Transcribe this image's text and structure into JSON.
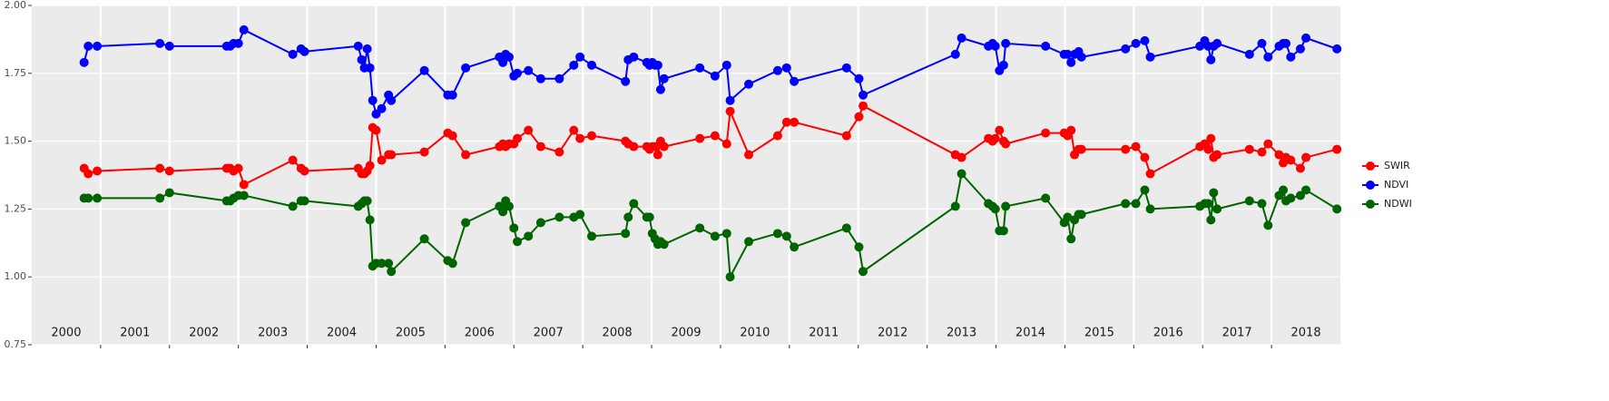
{
  "chart_data": {
    "type": "line",
    "x": [
      2000.76,
      2000.82,
      2000.95,
      2001.86,
      2002.0,
      2002.83,
      2002.88,
      2002.93,
      2003.0,
      2003.08,
      2003.79,
      2003.91,
      2003.96,
      2004.74,
      2004.79,
      2004.83,
      2004.87,
      2004.91,
      2004.95,
      2005.0,
      2005.08,
      2005.18,
      2005.22,
      2005.7,
      2006.04,
      2006.11,
      2006.3,
      2006.79,
      2006.84,
      2006.88,
      2006.93,
      2007.0,
      2007.05,
      2007.21,
      2007.39,
      2007.66,
      2007.87,
      2007.96,
      2008.13,
      2008.62,
      2008.66,
      2008.74,
      2008.93,
      2008.97,
      2009.01,
      2009.05,
      2009.09,
      2009.13,
      2009.18,
      2009.7,
      2009.92,
      2010.09,
      2010.14,
      2010.41,
      2010.83,
      2010.96,
      2011.07,
      2011.83,
      2012.01,
      2012.07,
      2013.41,
      2013.5,
      2013.89,
      2013.95,
      2013.99,
      2014.05,
      2014.11,
      2014.14,
      2014.72,
      2014.99,
      2015.04,
      2015.09,
      2015.14,
      2015.2,
      2015.24,
      2015.88,
      2016.03,
      2016.16,
      2016.24,
      2016.96,
      2017.03,
      2017.08,
      2017.12,
      2017.16,
      2017.21,
      2017.68,
      2017.86,
      2017.95,
      2018.11,
      2018.17,
      2018.21,
      2018.28,
      2018.42,
      2018.5,
      2018.95
    ],
    "series": [
      {
        "name": "SWIR",
        "color": "#ff0000",
        "values": [
          1.4,
          1.38,
          1.39,
          1.4,
          1.39,
          1.4,
          1.4,
          1.39,
          1.4,
          1.34,
          1.43,
          1.4,
          1.39,
          1.4,
          1.38,
          1.38,
          1.39,
          1.41,
          1.55,
          1.54,
          1.43,
          1.45,
          1.45,
          1.46,
          1.53,
          1.52,
          1.45,
          1.48,
          1.49,
          1.48,
          1.49,
          1.49,
          1.51,
          1.54,
          1.48,
          1.46,
          1.54,
          1.51,
          1.52,
          1.5,
          1.49,
          1.48,
          1.48,
          1.47,
          1.48,
          1.48,
          1.45,
          1.5,
          1.48,
          1.51,
          1.52,
          1.49,
          1.61,
          1.45,
          1.52,
          1.57,
          1.57,
          1.52,
          1.59,
          1.63,
          1.45,
          1.44,
          1.51,
          1.5,
          1.51,
          1.54,
          1.5,
          1.49,
          1.53,
          1.53,
          1.52,
          1.54,
          1.45,
          1.47,
          1.47,
          1.47,
          1.48,
          1.44,
          1.38,
          1.48,
          1.49,
          1.47,
          1.51,
          1.44,
          1.45,
          1.47,
          1.46,
          1.49,
          1.45,
          1.42,
          1.44,
          1.43,
          1.4,
          1.44,
          1.47
        ]
      },
      {
        "name": "NDVI",
        "color": "#0000ff",
        "values": [
          1.79,
          1.85,
          1.85,
          1.86,
          1.85,
          1.85,
          1.85,
          1.86,
          1.86,
          1.91,
          1.82,
          1.84,
          1.83,
          1.85,
          1.8,
          1.77,
          1.84,
          1.77,
          1.65,
          1.6,
          1.62,
          1.67,
          1.65,
          1.76,
          1.67,
          1.67,
          1.77,
          1.81,
          1.79,
          1.82,
          1.81,
          1.74,
          1.75,
          1.76,
          1.73,
          1.73,
          1.78,
          1.81,
          1.78,
          1.72,
          1.8,
          1.81,
          1.79,
          1.78,
          1.79,
          1.78,
          1.78,
          1.69,
          1.73,
          1.77,
          1.74,
          1.78,
          1.65,
          1.71,
          1.76,
          1.77,
          1.72,
          1.77,
          1.73,
          1.67,
          1.82,
          1.88,
          1.85,
          1.86,
          1.85,
          1.76,
          1.78,
          1.86,
          1.85,
          1.82,
          1.82,
          1.79,
          1.82,
          1.83,
          1.81,
          1.84,
          1.86,
          1.87,
          1.81,
          1.85,
          1.87,
          1.85,
          1.8,
          1.85,
          1.86,
          1.82,
          1.86,
          1.81,
          1.85,
          1.86,
          1.86,
          1.81,
          1.84,
          1.88,
          1.84
        ]
      },
      {
        "name": "NDWI",
        "color": "#006400",
        "values": [
          1.29,
          1.29,
          1.29,
          1.29,
          1.31,
          1.28,
          1.28,
          1.29,
          1.3,
          1.3,
          1.26,
          1.28,
          1.28,
          1.26,
          1.27,
          1.28,
          1.28,
          1.21,
          1.04,
          1.05,
          1.05,
          1.05,
          1.02,
          1.14,
          1.06,
          1.05,
          1.2,
          1.26,
          1.24,
          1.28,
          1.26,
          1.18,
          1.13,
          1.15,
          1.2,
          1.22,
          1.22,
          1.23,
          1.15,
          1.16,
          1.22,
          1.27,
          1.22,
          1.22,
          1.16,
          1.14,
          1.12,
          1.13,
          1.12,
          1.18,
          1.15,
          1.16,
          1.0,
          1.13,
          1.16,
          1.15,
          1.11,
          1.18,
          1.11,
          1.02,
          1.26,
          1.38,
          1.27,
          1.26,
          1.25,
          1.17,
          1.17,
          1.26,
          1.29,
          1.2,
          1.22,
          1.14,
          1.21,
          1.23,
          1.23,
          1.27,
          1.27,
          1.32,
          1.25,
          1.26,
          1.27,
          1.27,
          1.21,
          1.31,
          1.25,
          1.28,
          1.27,
          1.19,
          1.3,
          1.32,
          1.28,
          1.29,
          1.3,
          1.32,
          1.25
        ]
      }
    ],
    "xlim": [
      2000,
      2019
    ],
    "xticks": [
      {
        "value": 2000.5,
        "label": "2000"
      },
      {
        "value": 2001.5,
        "label": "2001"
      },
      {
        "value": 2002.5,
        "label": "2002"
      },
      {
        "value": 2003.5,
        "label": "2003"
      },
      {
        "value": 2004.5,
        "label": "2004"
      },
      {
        "value": 2005.5,
        "label": "2005"
      },
      {
        "value": 2006.5,
        "label": "2006"
      },
      {
        "value": 2007.5,
        "label": "2007"
      },
      {
        "value": 2008.5,
        "label": "2008"
      },
      {
        "value": 2009.5,
        "label": "2009"
      },
      {
        "value": 2010.5,
        "label": "2010"
      },
      {
        "value": 2011.5,
        "label": "2011"
      },
      {
        "value": 2012.5,
        "label": "2012"
      },
      {
        "value": 2013.5,
        "label": "2013"
      },
      {
        "value": 2014.5,
        "label": "2014"
      },
      {
        "value": 2015.5,
        "label": "2015"
      },
      {
        "value": 2016.5,
        "label": "2016"
      },
      {
        "value": 2017.5,
        "label": "2017"
      },
      {
        "value": 2018.5,
        "label": "2018"
      }
    ],
    "xgrid": [
      2001,
      2002,
      2003,
      2004,
      2005,
      2006,
      2007,
      2008,
      2009,
      2010,
      2011,
      2012,
      2013,
      2014,
      2015,
      2016,
      2017,
      2018
    ],
    "ylim": [
      0.75,
      2.0
    ],
    "yticks": [
      {
        "value": 0.75,
        "label": "0.75"
      },
      {
        "value": 1,
        "label": "1.00"
      },
      {
        "value": 1.25,
        "label": "1.25"
      },
      {
        "value": 1.5,
        "label": "1.50"
      },
      {
        "value": 1.75,
        "label": "1.75"
      },
      {
        "value": 2,
        "label": "2.00"
      }
    ],
    "grid": true,
    "legend": "right"
  }
}
